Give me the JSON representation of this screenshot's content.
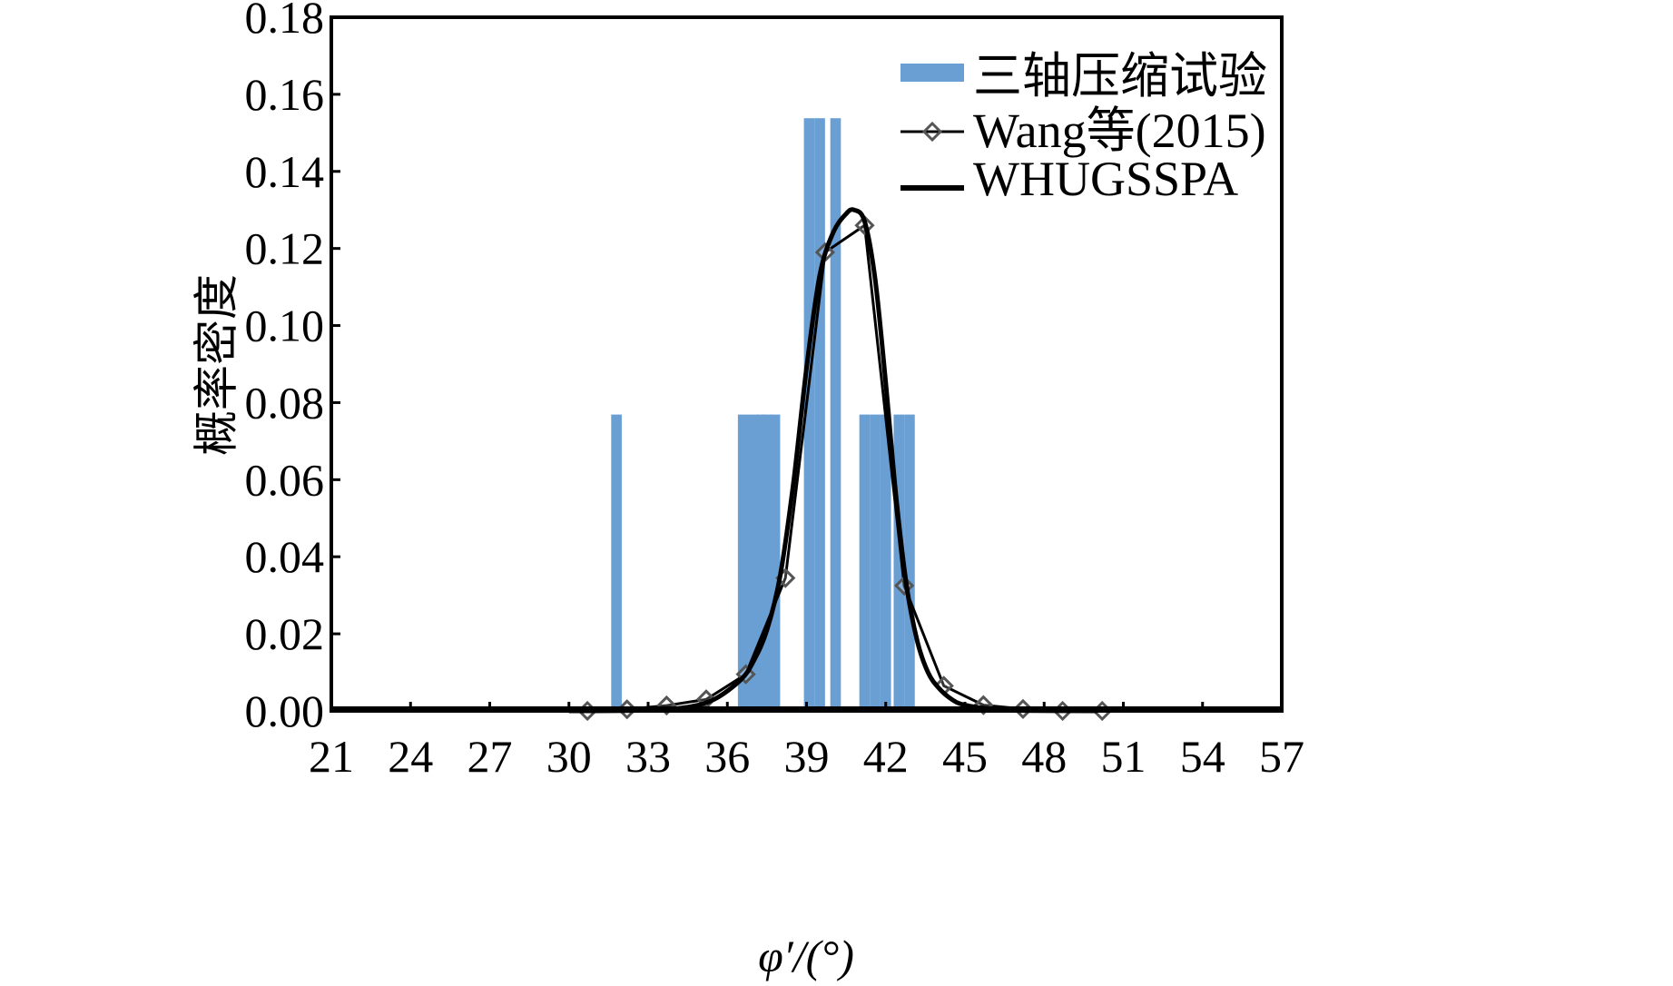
{
  "chart_data": {
    "type": "bar",
    "xlabel": "φ′/(°)",
    "ylabel": "概率密度",
    "xlim": [
      21,
      57
    ],
    "ylim": [
      0,
      0.18
    ],
    "x_ticks": [
      "21",
      "24",
      "27",
      "30",
      "33",
      "36",
      "39",
      "42",
      "45",
      "48",
      "51",
      "54",
      "57"
    ],
    "y_ticks": [
      "0.00",
      "0.02",
      "0.04",
      "0.06",
      "0.08",
      "0.10",
      "0.12",
      "0.14",
      "0.16",
      "0.18"
    ],
    "legend_position": "top-right",
    "colors": {
      "bars": "#6A9FD4",
      "lines": "#000000"
    },
    "series": [
      {
        "name": "三轴压缩试验",
        "type": "bar",
        "bar_width": 0.4,
        "x": [
          31.8,
          36.6,
          37.0,
          37.3,
          37.5,
          37.8,
          39.1,
          39.5,
          40.1,
          41.2,
          41.6,
          42.0,
          42.5,
          42.9
        ],
        "values": [
          0.0769,
          0.0769,
          0.0769,
          0.0769,
          0.0769,
          0.0769,
          0.1538,
          0.1538,
          0.1538,
          0.0769,
          0.0769,
          0.0769,
          0.0769,
          0.0769
        ]
      },
      {
        "name": "Wang等(2015)",
        "type": "line-marker",
        "marker": "diamond",
        "x": [
          30.7,
          32.2,
          33.7,
          35.2,
          36.7,
          38.2,
          39.7,
          41.2,
          42.7,
          44.2,
          45.7,
          47.2,
          48.7,
          50.2
        ],
        "values": [
          0.0,
          0.0004,
          0.0014,
          0.003,
          0.0095,
          0.0345,
          0.119,
          0.126,
          0.0325,
          0.0065,
          0.0015,
          0.0005,
          0.0,
          0.0
        ]
      },
      {
        "name": "WHUGSSPA",
        "type": "line",
        "x": [
          30.0,
          33.0,
          34.5,
          35.5,
          36.5,
          37.0,
          37.5,
          38.0,
          38.5,
          39.0,
          39.5,
          40.0,
          40.5,
          40.8,
          41.2,
          41.6,
          42.0,
          42.4,
          42.8,
          43.2,
          43.6,
          44.0,
          44.5,
          45.0,
          46.0,
          47.0,
          50.0
        ],
        "values": [
          0.0,
          0.0002,
          0.001,
          0.003,
          0.008,
          0.013,
          0.021,
          0.035,
          0.059,
          0.089,
          0.113,
          0.124,
          0.129,
          0.13,
          0.127,
          0.112,
          0.085,
          0.055,
          0.032,
          0.018,
          0.01,
          0.006,
          0.003,
          0.0015,
          0.0005,
          0.0001,
          0.0
        ]
      }
    ]
  }
}
